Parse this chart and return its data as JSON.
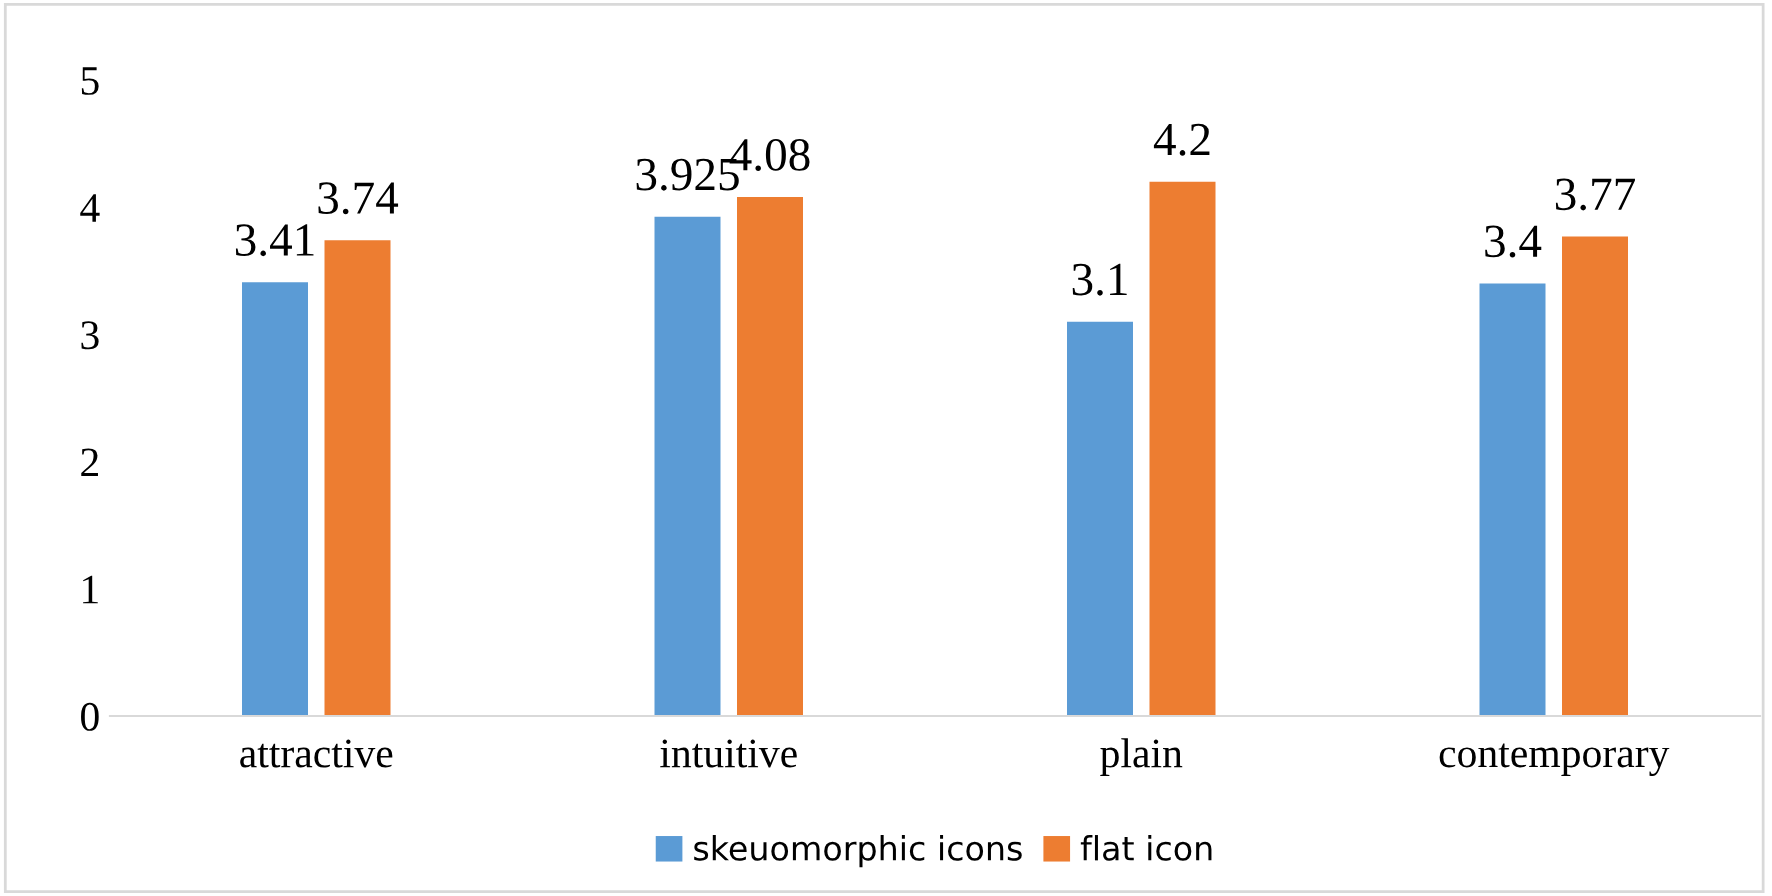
{
  "chart_data": {
    "type": "bar",
    "categories": [
      "attractive",
      "intuitive",
      "plain",
      "contemporary"
    ],
    "series": [
      {
        "name": "skeuomorphic icons",
        "color": "#5b9bd5",
        "values": [
          3.41,
          3.925,
          3.1,
          3.4
        ]
      },
      {
        "name": "flat icon",
        "color": "#ed7d31",
        "values": [
          3.74,
          4.08,
          4.2,
          3.77
        ]
      }
    ],
    "ylim": [
      0,
      5
    ],
    "yticks": [
      0,
      1,
      2,
      3,
      4,
      5
    ],
    "grid": false,
    "legend": "bottom",
    "data_labels": true
  }
}
